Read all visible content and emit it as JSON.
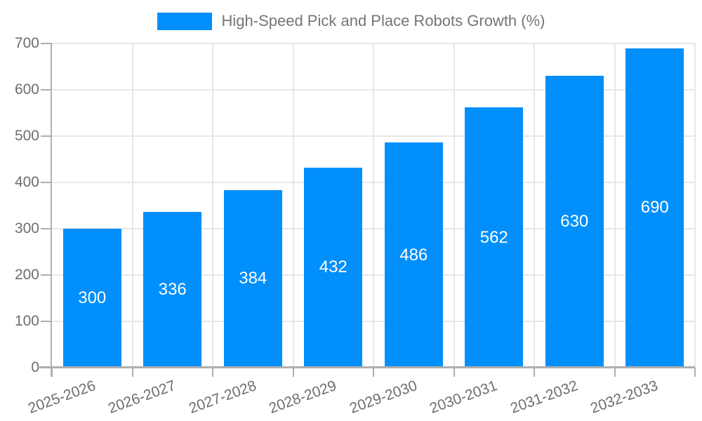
{
  "chart_data": {
    "type": "bar",
    "title": "High-Speed Pick and Place Robots Growth (%)",
    "categories": [
      "2025-2026",
      "2026-2027",
      "2027-2028",
      "2028-2029",
      "2029-2030",
      "2030-2031",
      "2031-2032",
      "2032-2033"
    ],
    "values": [
      300,
      336,
      384,
      432,
      486,
      562,
      630,
      690
    ],
    "xlabel": "",
    "ylabel": "",
    "ylim": [
      0,
      700
    ],
    "yticks": [
      0,
      100,
      200,
      300,
      400,
      500,
      600,
      700
    ],
    "grid": true,
    "legend_position": "top",
    "colors": {
      "bar": "#008FFB",
      "value_label": "#ffffff",
      "axis_text": "#6e6e6e",
      "legend_text": "#757575",
      "gridline": "#e7e7e7",
      "axis_line": "#afafaf",
      "background": "#ffffff"
    }
  }
}
